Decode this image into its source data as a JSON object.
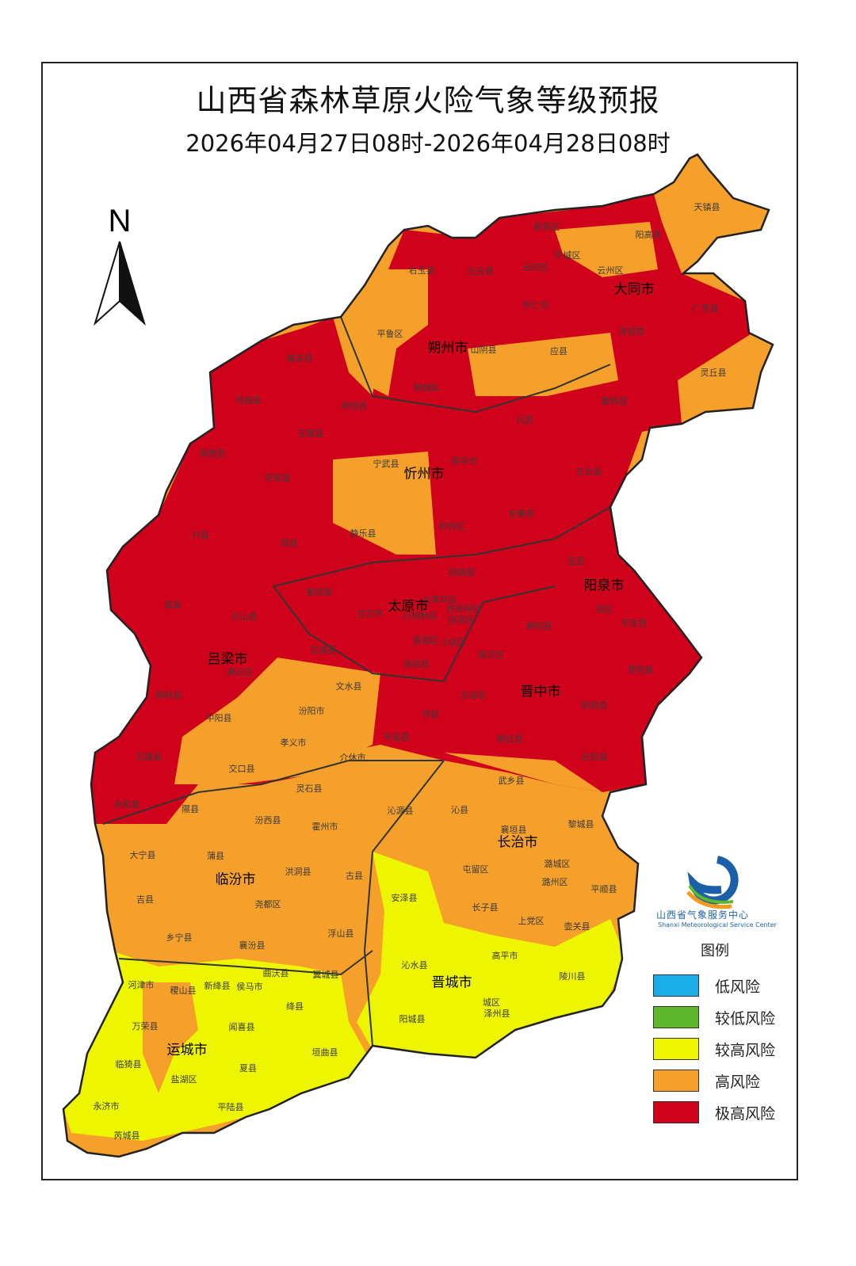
{
  "title": "山西省森林草原火险气象等级预报",
  "subtitle": "2026年04月27日08时-2026年04月28日08时",
  "north_label": "N",
  "logo": {
    "name_cn": "山西省气象服务中心",
    "name_en": "Shanxi Meteorological Service Center"
  },
  "legend": {
    "title": "图例",
    "items": [
      {
        "label": "低风险",
        "color": "#1aaee8"
      },
      {
        "label": "较低风险",
        "color": "#5db82e"
      },
      {
        "label": "较高风险",
        "color": "#eef500"
      },
      {
        "label": "高风险",
        "color": "#f5a02a"
      },
      {
        "label": "极高风险",
        "color": "#d0021b"
      }
    ]
  },
  "cities": [
    "大同市",
    "朔州市",
    "忻州市",
    "阳泉市",
    "太原市",
    "吕梁市",
    "晋中市",
    "长治市",
    "临汾市",
    "晋城市",
    "运城市"
  ],
  "counties": [
    "天镇县",
    "新荣区",
    "阳高县",
    "右玉县",
    "左云县",
    "云冈区",
    "平城区",
    "云州区",
    "广灵县",
    "怀仁市",
    "平鲁区",
    "浑源县",
    "山阴县",
    "应县",
    "灵丘县",
    "偏关县",
    "朔城区",
    "神池县",
    "河曲县",
    "繁峙县",
    "代县",
    "五寨县",
    "保德县",
    "宁武县",
    "原平市",
    "五台县",
    "岢岚县",
    "忻府区",
    "定襄县",
    "静乐县",
    "兴县",
    "岚县",
    "盂县",
    "阳曲县",
    "娄烦县",
    "尖草坪区",
    "万柏林区",
    "杏花岭区",
    "迎泽区",
    "古交市",
    "郊区",
    "平定县",
    "临县",
    "方山县",
    "寿阳县",
    "晋源区",
    "小店区",
    "榆次区",
    "清徐县",
    "交城县",
    "离石区",
    "昔阳县",
    "文水县",
    "太谷区",
    "柳林县",
    "中阳县",
    "汾阳市",
    "和顺县",
    "祁县",
    "孝义市",
    "平遥县",
    "榆社县",
    "左权县",
    "石楼县",
    "交口县",
    "介休市",
    "武乡县",
    "灵石县",
    "永和县",
    "隰县",
    "沁源县",
    "沁县",
    "汾西县",
    "霍州市",
    "襄垣县",
    "黎城县",
    "大宁县",
    "蒲县",
    "洪洞县",
    "古县",
    "屯留区",
    "潞城区",
    "安泽县",
    "潞州区",
    "平顺县",
    "吉县",
    "尧都区",
    "长子县",
    "上党区",
    "壶关县",
    "乡宁县",
    "浮山县",
    "襄汾县",
    "高平市",
    "曲沃县",
    "翼城县",
    "沁水县",
    "陵川县",
    "河津市",
    "稷山县",
    "新绛县",
    "侯马市",
    "绛县",
    "城区",
    "泽州县",
    "万荣县",
    "闻喜县",
    "阳城县",
    "垣曲县",
    "临猗县",
    "盐湖区",
    "夏县",
    "永济市",
    "平陆县",
    "芮城县"
  ]
}
